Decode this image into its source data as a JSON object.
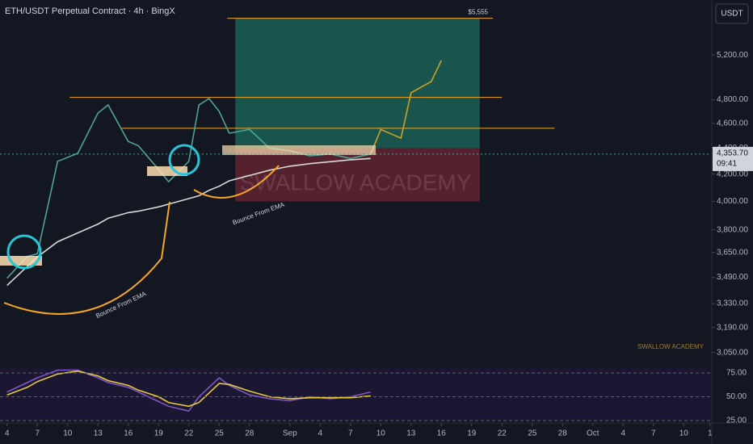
{
  "chart_data": [
    {
      "type": "line",
      "title": "ETH/USDT Perpetual Contract · 4h · BingX",
      "currency": "USDT",
      "log_y": true,
      "x": [
        0,
        2,
        3,
        5,
        7,
        9,
        10,
        12,
        13,
        15,
        16,
        18,
        19,
        20,
        21,
        22,
        24,
        26,
        28,
        30,
        32,
        34,
        36,
        37,
        39,
        40,
        42,
        43
      ],
      "series": [
        {
          "color": "#4fa394",
          "values": [
            3485,
            3624,
            3640,
            4297,
            4360,
            4686,
            4755,
            4453,
            4420,
            4236,
            4143,
            4297,
            4755,
            4810,
            4700,
            4520,
            4550,
            4400,
            4380,
            4340,
            4355,
            4320,
            4354,
            null,
            null,
            null,
            null,
            null
          ]
        },
        {
          "color": "#d8d8d8",
          "values": [
            3440,
            3560,
            3620,
            3720,
            3780,
            3840,
            3880,
            3920,
            3930,
            3960,
            3980,
            4020,
            4040,
            4080,
            4110,
            4150,
            4190,
            4230,
            4260,
            4280,
            4295,
            4310,
            4320,
            null,
            null,
            null,
            null,
            null
          ]
        },
        {
          "color": "#c9a227",
          "values": [
            null,
            null,
            null,
            null,
            null,
            null,
            null,
            null,
            null,
            null,
            null,
            null,
            null,
            null,
            null,
            null,
            null,
            null,
            null,
            null,
            null,
            null,
            4354,
            4550,
            4480,
            4860,
            4960,
            5150
          ]
        }
      ],
      "xlim": [
        -0.7,
        69.7
      ],
      "ylim": [
        2970,
        5740
      ],
      "xticks": [
        {
          "value": 0,
          "label": "4"
        },
        {
          "value": 3,
          "label": "7"
        },
        {
          "value": 6,
          "label": "10"
        },
        {
          "value": 9,
          "label": "13"
        },
        {
          "value": 12,
          "label": "16"
        },
        {
          "value": 15,
          "label": "19"
        },
        {
          "value": 18,
          "label": "22"
        },
        {
          "value": 21,
          "label": "25"
        },
        {
          "value": 24,
          "label": "28"
        },
        {
          "value": 28,
          "label": "Sep"
        },
        {
          "value": 31,
          "label": "4"
        },
        {
          "value": 34,
          "label": "7"
        },
        {
          "value": 37,
          "label": "10"
        },
        {
          "value": 40,
          "label": "13"
        },
        {
          "value": 43,
          "label": "16"
        },
        {
          "value": 46,
          "label": "19"
        },
        {
          "value": 49,
          "label": "22"
        },
        {
          "value": 52,
          "label": "25"
        },
        {
          "value": 55,
          "label": "28"
        },
        {
          "value": 58,
          "label": "Oct"
        },
        {
          "value": 61,
          "label": "4"
        },
        {
          "value": 64,
          "label": "7"
        },
        {
          "value": 67,
          "label": "10"
        },
        {
          "value": 69.6,
          "label": "1"
        }
      ],
      "yticks": [
        {
          "value": 5200,
          "label": "5,200.00"
        },
        {
          "value": 4800,
          "label": "4,800.00"
        },
        {
          "value": 4600,
          "label": "4,600.00"
        },
        {
          "value": 4400,
          "label": "4,400.00"
        },
        {
          "value": 4200,
          "label": "4,200.00"
        },
        {
          "value": 4000,
          "label": "4,000.00"
        },
        {
          "value": 3800,
          "label": "3,800.00"
        },
        {
          "value": 3650,
          "label": "3,650.00"
        },
        {
          "value": 3490,
          "label": "3,490.00"
        },
        {
          "value": 3330,
          "label": "3,330.00"
        },
        {
          "value": 3190,
          "label": "3,190.00"
        },
        {
          "value": 3050,
          "label": "3,050.00"
        }
      ],
      "levels": [
        {
          "value": 5555,
          "label": "$5,555",
          "x": [
            21.8,
            48.1
          ]
        },
        {
          "value": 4820,
          "x": [
            6.2,
            49
          ]
        },
        {
          "value": 4560,
          "x": [
            11.3,
            54.2
          ]
        }
      ],
      "zones": [
        {
          "from": 4400,
          "to": 5555,
          "x": [
            22.6,
            46.8
          ],
          "color": "#1d6b5c"
        },
        {
          "from": 4000,
          "to": 4400,
          "x": [
            22.6,
            46.8
          ],
          "color": "#6e2633"
        }
      ],
      "annotations": [
        "Bounce From EMA",
        "Bounce From EMA"
      ],
      "watermark": "SWALLOW ACADEMY",
      "signature": "SWALLOW ACADEMY",
      "last_price": {
        "value": 4353.7,
        "label": "4,353.70"
      },
      "countdown": "09:41"
    },
    {
      "type": "line",
      "x": [
        0,
        2,
        3,
        5,
        7,
        9,
        10,
        12,
        13,
        15,
        16,
        18,
        19,
        20,
        21,
        22,
        24,
        26,
        28,
        30,
        32,
        34,
        36
      ],
      "series": [
        {
          "color": "#7e57c2",
          "values": [
            55,
            65,
            70,
            78,
            78,
            70,
            65,
            60,
            55,
            45,
            40,
            35,
            50,
            60,
            70,
            62,
            52,
            48,
            46,
            50,
            48,
            50,
            55
          ]
        },
        {
          "color": "#e6c93c",
          "values": [
            52,
            60,
            66,
            74,
            77,
            72,
            67,
            62,
            57,
            50,
            44,
            40,
            44,
            54,
            64,
            63,
            56,
            50,
            48,
            49,
            49,
            49,
            51
          ]
        }
      ],
      "xlim": [
        -0.7,
        69.7
      ],
      "ylim": [
        25,
        81
      ],
      "yticks": [
        {
          "value": 75,
          "label": "75.00"
        },
        {
          "value": 50,
          "label": "50.00"
        },
        {
          "value": 25,
          "label": "25.00"
        }
      ]
    }
  ]
}
